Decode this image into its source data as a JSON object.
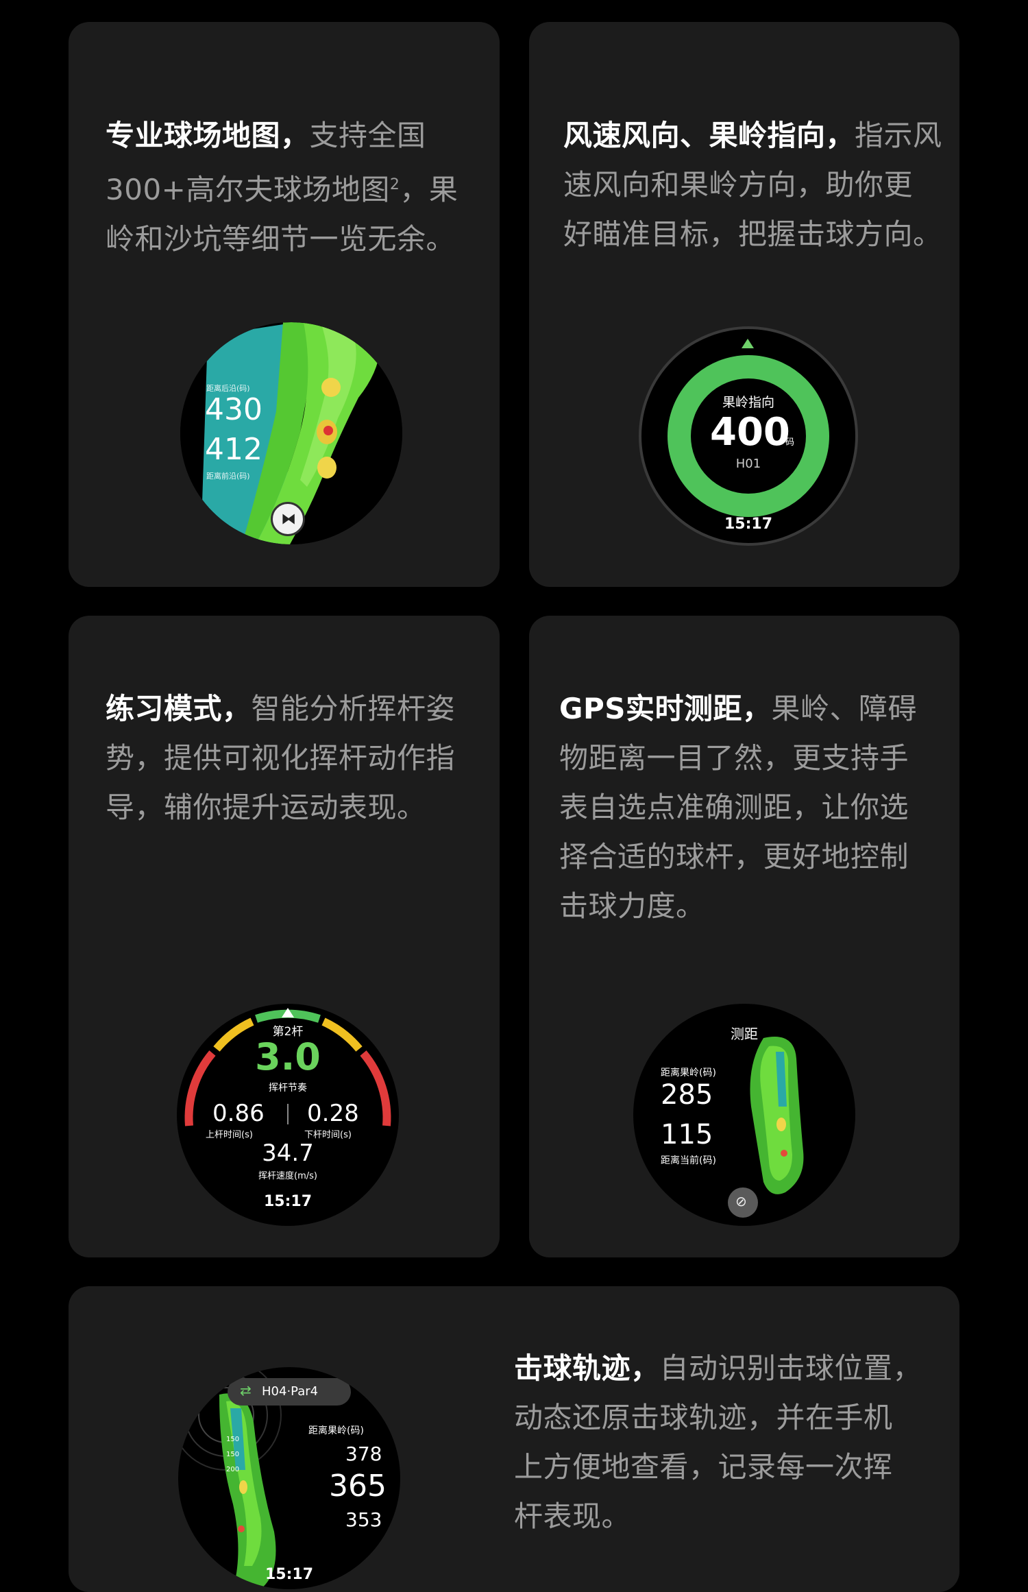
{
  "cards": {
    "map": {
      "highlight": "专业球场地图，",
      "lines": [
        "支持全国",
        "300+高尔夫球场地图",
        "2",
        "，果",
        "岭和沙坑等细节一览无余。"
      ],
      "watch": {
        "back_label": "距离后沿(码)",
        "back_value": "430",
        "front_value": "412",
        "front_label": "距离前沿(码)"
      }
    },
    "wind": {
      "highlight": "风速风向、果岭指向，",
      "line1_rest": "指示风",
      "line2": "速风向和果岭方向，助你更",
      "line3": "好瞄准目标，把握击球方向。",
      "watch": {
        "title": "果岭指向",
        "value": "400",
        "unit": "码",
        "hole": "H01",
        "time": "15:17"
      }
    },
    "practice": {
      "highlight": "练习模式，",
      "line1_rest": "智能分析挥杆姿",
      "line2": "势，提供可视化挥杆动作指",
      "line3": "导，辅你提升运动表现。",
      "watch": {
        "stroke": "第2杆",
        "tempo_value": "3.0",
        "tempo_label": "挥杆节奏",
        "up_value": "0.86",
        "up_label": "上杆时间(s)",
        "down_value": "0.28",
        "down_label": "下杆时间(s)",
        "speed_value": "34.7",
        "speed_label": "挥杆速度(m/s)",
        "time": "15:17"
      }
    },
    "gps": {
      "highlight": "GPS实时测距，",
      "line1_rest": "果岭、障碍",
      "line2": "物距离一目了然，更支持手",
      "line3": "表自选点准确测距，让你选",
      "line4": "择合适的球杆，更好地控制",
      "line5": "击球力度。",
      "watch": {
        "title": "测距",
        "green_label": "距离果岭(码)",
        "green_value": "285",
        "current_value": "115",
        "current_label": "距离当前(码)"
      }
    },
    "trajectory": {
      "highlight": "击球轨迹，",
      "line1_rest": "自动识别击球位置，",
      "line2": "动态还原击球轨迹，并在手机",
      "line3": "上方便地查看，记录每一次挥",
      "line4": "杆表现。",
      "watch": {
        "hole_badge": "H04·Par4",
        "green_label": "距离果岭(码)",
        "far_value": "378",
        "mid_value": "365",
        "near_value": "353",
        "marks": [
          "150",
          "150",
          "200"
        ],
        "time": "15:17"
      }
    }
  },
  "colors": {
    "background": "#000000",
    "card": "#1c1c1c",
    "text_highlight": "#ffffff",
    "text_muted": "#9c9c9c",
    "fairway": "#55c832",
    "ring_green": "#4fc35a",
    "water": "#2aa9a6"
  }
}
